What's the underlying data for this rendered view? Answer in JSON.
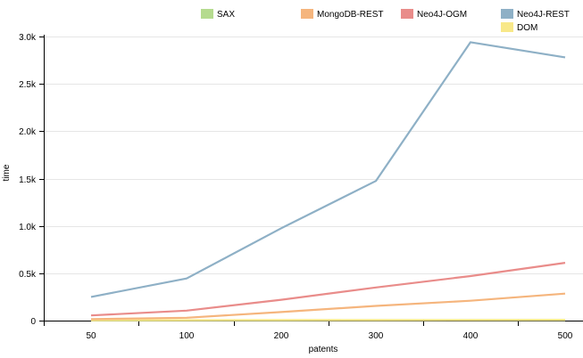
{
  "chart_data": {
    "type": "line",
    "xlabel": "patents",
    "ylabel": "time",
    "categories": [
      "50",
      "100",
      "200",
      "300",
      "400",
      "500"
    ],
    "y_ticks": [
      "0",
      "0.5k",
      "1.0k",
      "1.5k",
      "2.0k",
      "2.5k",
      "3.0k"
    ],
    "y_tick_values": [
      0,
      500,
      1000,
      1500,
      2000,
      2500,
      3000
    ],
    "ylim": [
      0,
      3000
    ],
    "grid": "horizontal",
    "legend_position": "top",
    "series": [
      {
        "name": "SAX",
        "color": "#b5db8f",
        "values": [
          2,
          3,
          4,
          5,
          6,
          7
        ]
      },
      {
        "name": "MongoDB-REST",
        "color": "#f5b57d",
        "values": [
          15,
          30,
          90,
          155,
          210,
          285
        ]
      },
      {
        "name": "Neo4J-OGM",
        "color": "#e98c8a",
        "values": [
          55,
          105,
          220,
          350,
          470,
          610
        ]
      },
      {
        "name": "Neo4J-REST",
        "color": "#8eb0c6",
        "values": [
          250,
          445,
          975,
          1475,
          2940,
          2780
        ]
      },
      {
        "name": "DOM",
        "color": "#f8e889",
        "values": [
          4,
          5,
          6,
          6,
          7,
          8
        ]
      }
    ]
  }
}
